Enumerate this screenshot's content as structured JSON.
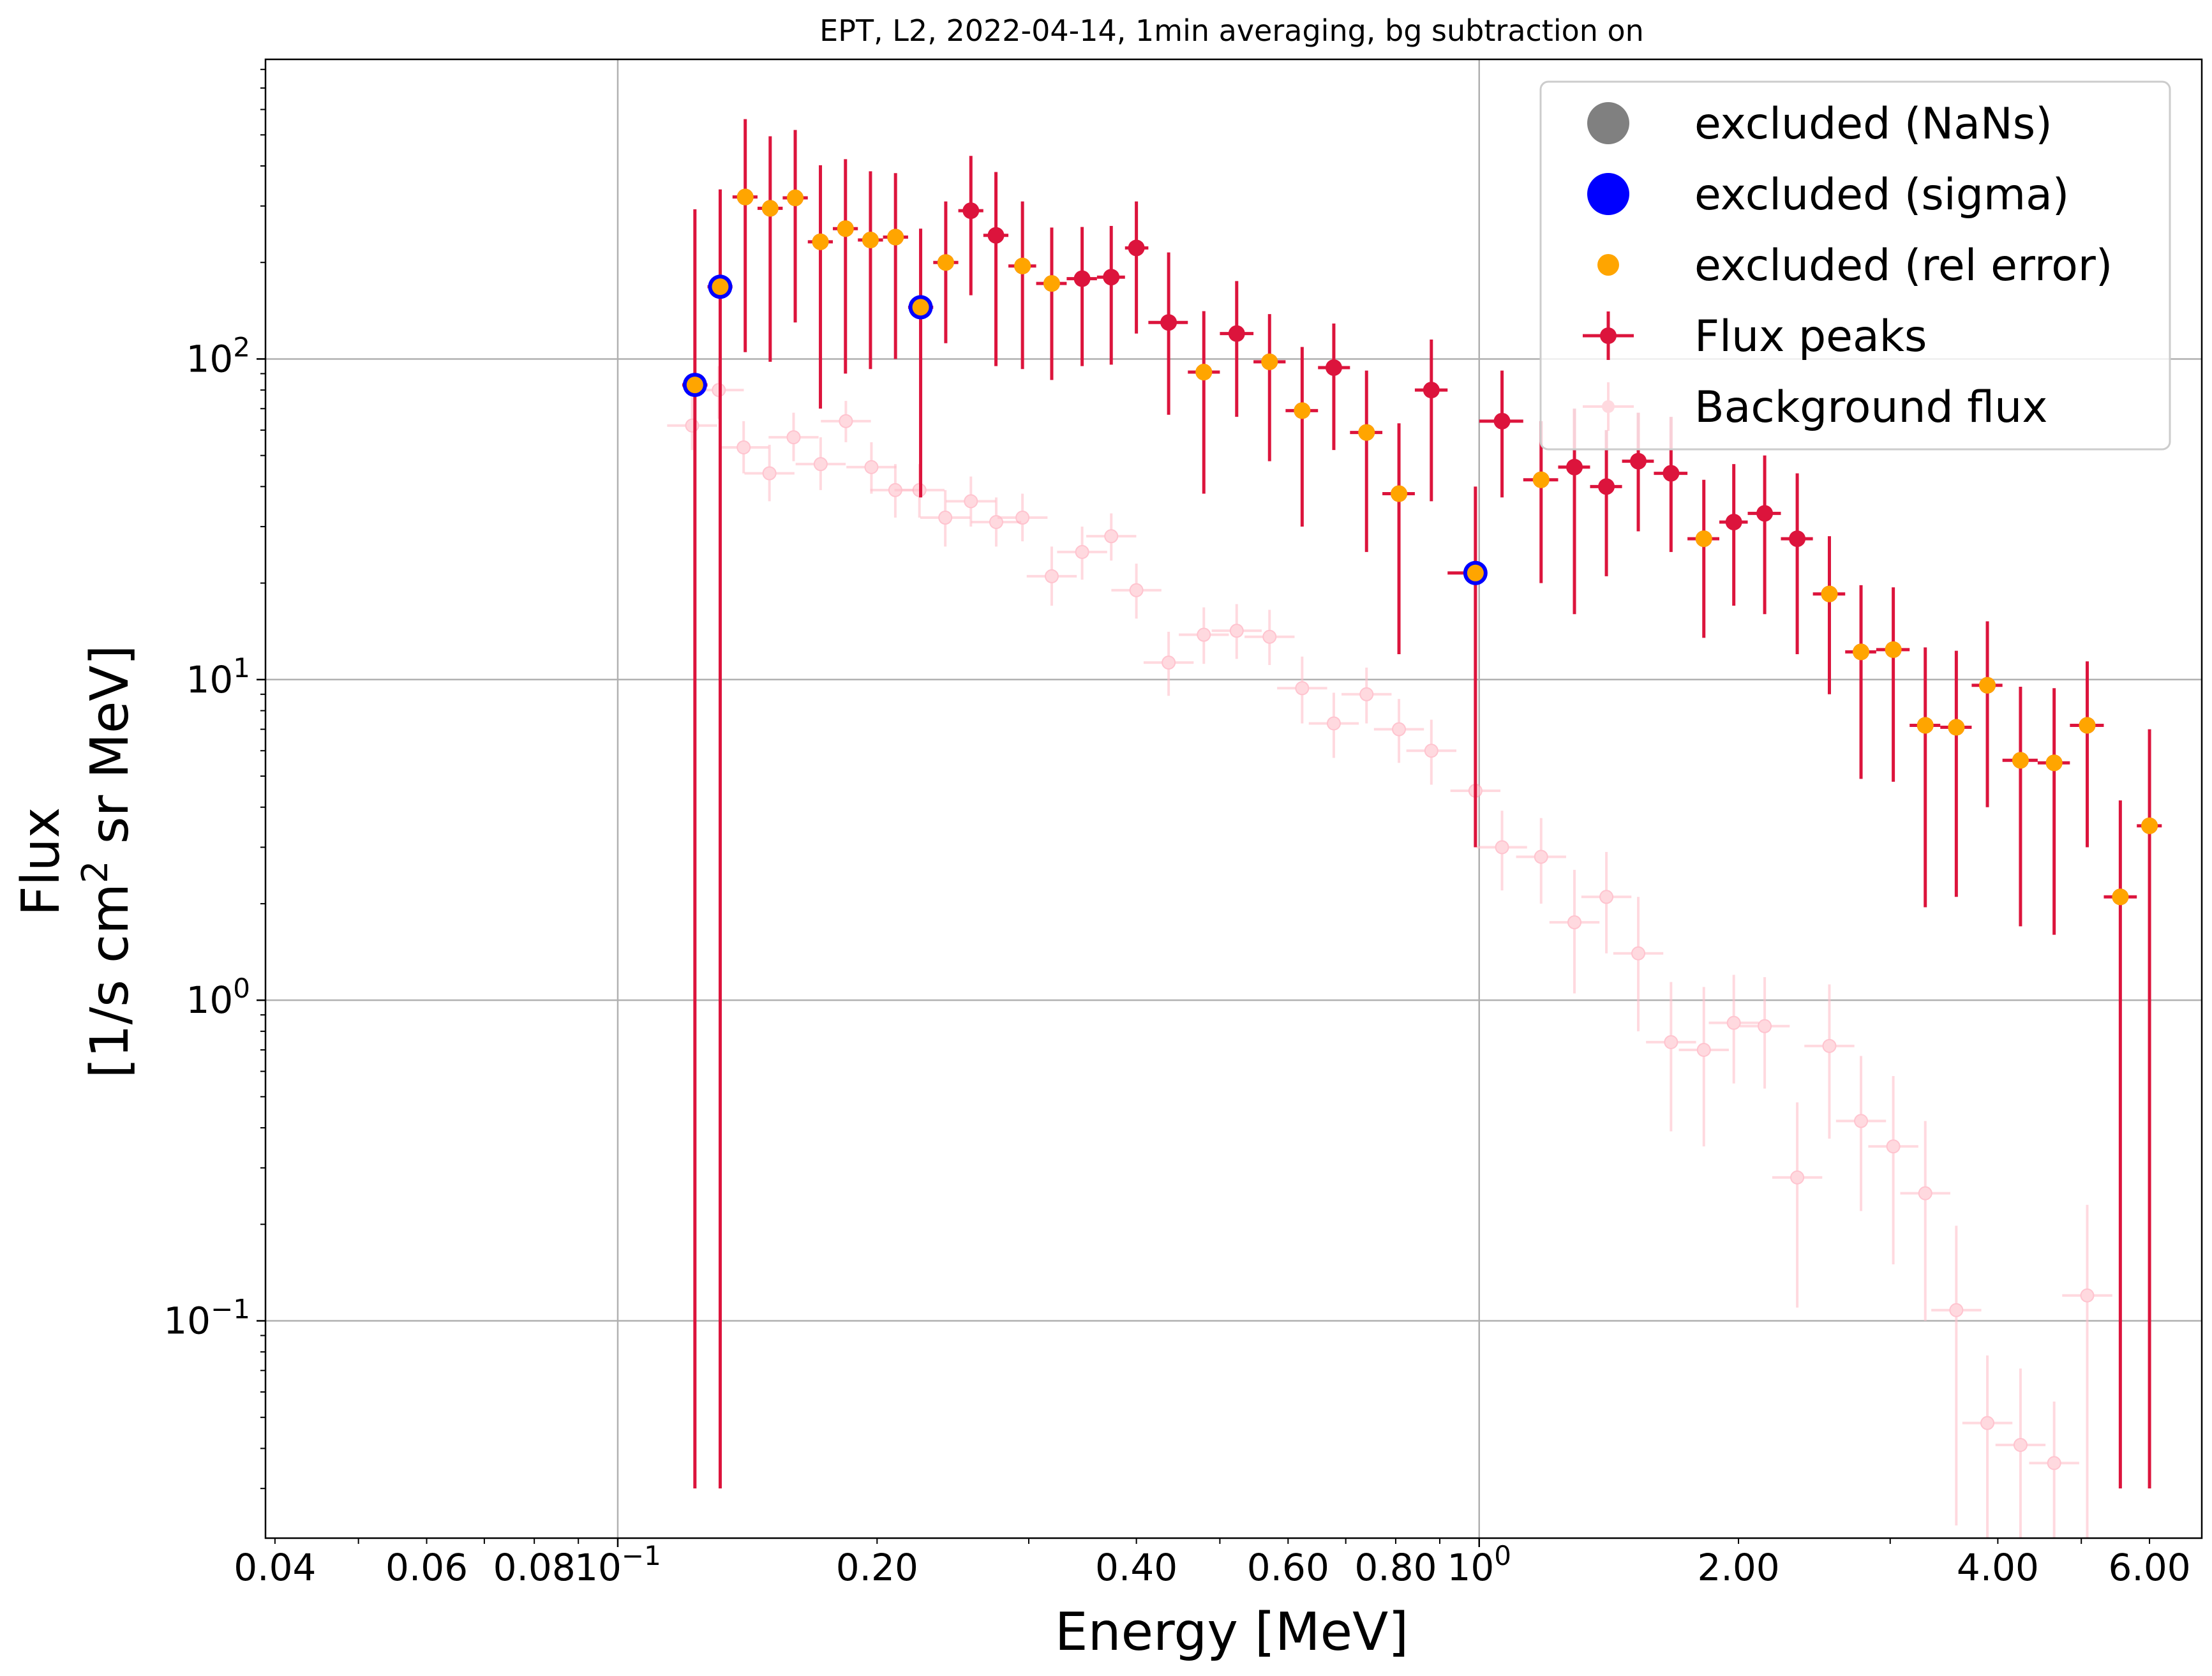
{
  "chart_data": {
    "type": "scatter",
    "title": "EPT, L2, 2022-04-14, 1min averaging, bg subtraction on",
    "xlabel": "Energy [MeV]",
    "ylabel_line1": "Flux",
    "ylabel_line2_pre": "[1/s cm",
    "ylabel_line2_sup": "2",
    "ylabel_line2_post": " sr MeV]",
    "xscale": "log",
    "yscale": "log",
    "xlim": [
      0.039,
      6.9
    ],
    "ylim": [
      0.021,
      860
    ],
    "grid": true,
    "legend_location": "upper right",
    "x_major_ticks": [
      {
        "value": 0.1,
        "label_base": "10",
        "label_exp": "−1"
      },
      {
        "value": 1.0,
        "label_base": "10",
        "label_exp": "0"
      }
    ],
    "x_minor_ticks": [
      {
        "value": 0.04,
        "label": "0.04"
      },
      {
        "value": 0.06,
        "label": "0.06"
      },
      {
        "value": 0.08,
        "label": "0.08"
      },
      {
        "value": 0.2,
        "label": "0.20"
      },
      {
        "value": 0.4,
        "label": "0.40"
      },
      {
        "value": 0.6,
        "label": "0.60"
      },
      {
        "value": 0.8,
        "label": "0.80"
      },
      {
        "value": 2.0,
        "label": "2.00"
      },
      {
        "value": 4.0,
        "label": "4.00"
      },
      {
        "value": 6.0,
        "label": "6.00"
      }
    ],
    "y_major_ticks": [
      {
        "value": 0.1,
        "label_base": "10",
        "label_exp": "−1"
      },
      {
        "value": 1,
        "label_base": "10",
        "label_exp": "0"
      },
      {
        "value": 10,
        "label_base": "10",
        "label_exp": "1"
      },
      {
        "value": 100,
        "label_base": "10",
        "label_exp": "2"
      }
    ],
    "legend": [
      {
        "label": "excluded (NaNs)",
        "marker": "gray-dot"
      },
      {
        "label": "excluded (sigma)",
        "marker": "blue-dot"
      },
      {
        "label": "excluded (rel error)",
        "marker": "orange-dot"
      },
      {
        "label": "Flux peaks",
        "marker": "crimson-errorbar"
      },
      {
        "label": "Background flux",
        "marker": "pink-errorbar"
      }
    ],
    "colors": {
      "flux": "#dc143c",
      "background": "#ffc0cb",
      "rel_error": "#ffa500",
      "sigma": "#0000ff",
      "nans": "#808080",
      "grid": "#b0b0b0"
    },
    "series": [
      {
        "name": "Flux peaks",
        "energy_bins": [
          [
            0.1188,
            0.1229,
            0.1271
          ],
          [
            0.1271,
            0.1315,
            0.1359
          ],
          [
            0.1359,
            0.1406,
            0.1453
          ],
          [
            0.1453,
            0.1503,
            0.1554
          ],
          [
            0.1554,
            0.1607,
            0.1662
          ],
          [
            0.1662,
            0.1719,
            0.1777
          ],
          [
            0.1777,
            0.1838,
            0.19
          ],
          [
            0.19,
            0.1965,
            0.2032
          ],
          [
            0.2032,
            0.2101,
            0.2173
          ],
          [
            0.2173,
            0.2247,
            0.2324
          ],
          [
            0.2324,
            0.2403,
            0.2485
          ],
          [
            0.2485,
            0.257,
            0.2657
          ],
          [
            0.2657,
            0.2748,
            0.2841
          ],
          [
            0.2841,
            0.295,
            0.306
          ],
          [
            0.306,
            0.319,
            0.332
          ],
          [
            0.332,
            0.346,
            0.36
          ],
          [
            0.36,
            0.374,
            0.388
          ],
          [
            0.388,
            0.4,
            0.413
          ],
          [
            0.413,
            0.436,
            0.459
          ],
          [
            0.459,
            0.479,
            0.5
          ],
          [
            0.5,
            0.523,
            0.547
          ],
          [
            0.547,
            0.571,
            0.596
          ],
          [
            0.596,
            0.623,
            0.65
          ],
          [
            0.65,
            0.678,
            0.708
          ],
          [
            0.708,
            0.74,
            0.772
          ],
          [
            0.772,
            0.807,
            0.842
          ],
          [
            0.842,
            0.88,
            0.919
          ],
          [
            0.919,
            0.99,
            1.0
          ],
          [
            1.0,
            1.063,
            1.125
          ],
          [
            1.125,
            1.18,
            1.235
          ],
          [
            1.235,
            1.29,
            1.345
          ],
          [
            1.345,
            1.405,
            1.465
          ],
          [
            1.465,
            1.53,
            1.595
          ],
          [
            1.595,
            1.67,
            1.745
          ],
          [
            1.745,
            1.823,
            1.9
          ],
          [
            1.9,
            1.975,
            2.05
          ],
          [
            2.05,
            2.145,
            2.24
          ],
          [
            2.24,
            2.34,
            2.44
          ],
          [
            2.44,
            2.55,
            2.66
          ],
          [
            2.66,
            2.775,
            2.89
          ],
          [
            2.89,
            3.025,
            3.16
          ],
          [
            3.16,
            3.295,
            3.43
          ],
          [
            3.43,
            3.58,
            3.73
          ],
          [
            3.73,
            3.89,
            4.05
          ],
          [
            4.05,
            4.25,
            4.45
          ],
          [
            4.45,
            4.65,
            4.85
          ],
          [
            4.85,
            5.08,
            5.31
          ],
          [
            5.31,
            5.55,
            5.8
          ],
          [
            5.8,
            6.0,
            6.2
          ]
        ],
        "flux": [
          83,
          168,
          320,
          295,
          318,
          232,
          255,
          235,
          240,
          145,
          200,
          290,
          243,
          195,
          172,
          178,
          180,
          222,
          130,
          91,
          120,
          98,
          69,
          94,
          59,
          38,
          80,
          21.5,
          64,
          42,
          46,
          40,
          48,
          44,
          27.5,
          31,
          33,
          27.5,
          18.5,
          12.2,
          12.4,
          7.2,
          7.1,
          9.6,
          5.6,
          5.5,
          7.2,
          2.1,
          3.5
        ],
        "err_low": [
          82.97,
          167.97,
          215,
          197,
          188,
          162,
          165,
          142,
          140,
          108,
          88,
          132,
          148,
          102,
          86,
          83,
          84,
          102,
          63,
          53,
          54,
          50,
          39,
          42,
          34,
          26,
          44,
          18.5,
          27,
          22,
          30,
          19,
          19,
          19,
          14,
          14,
          17,
          15.5,
          9.5,
          7.3,
          7.6,
          5.25,
          5.0,
          5.6,
          3.9,
          3.9,
          4.2,
          2.07,
          3.47
        ],
        "err_high": [
          210,
          170,
          240,
          200,
          200,
          170,
          165,
          150,
          140,
          110,
          110,
          140,
          140,
          115,
          85,
          80,
          80,
          88,
          85,
          50,
          55,
          40,
          40,
          35,
          33,
          25,
          35,
          18.5,
          28,
          22,
          24,
          20,
          20,
          22,
          14.5,
          16,
          17,
          16.5,
          9.5,
          7.5,
          7.0,
          5.4,
          5.2,
          5.6,
          3.9,
          3.9,
          4.2,
          2.1,
          3.5
        ],
        "excluded_rel_error": [
          true,
          true,
          true,
          true,
          true,
          true,
          true,
          true,
          true,
          true,
          true,
          false,
          false,
          true,
          true,
          false,
          false,
          false,
          false,
          true,
          false,
          true,
          true,
          false,
          true,
          true,
          false,
          true,
          false,
          true,
          false,
          false,
          false,
          false,
          true,
          false,
          false,
          false,
          true,
          true,
          true,
          true,
          true,
          true,
          true,
          true,
          true,
          true,
          true
        ],
        "excluded_sigma": [
          true,
          true,
          false,
          false,
          false,
          false,
          false,
          false,
          false,
          true,
          false,
          false,
          false,
          false,
          false,
          false,
          false,
          false,
          false,
          false,
          false,
          false,
          false,
          false,
          false,
          false,
          false,
          true,
          false,
          false,
          false,
          false,
          false,
          false,
          false,
          false,
          false,
          false,
          false,
          false,
          false,
          false,
          false,
          false,
          false,
          false,
          false,
          false,
          false
        ]
      },
      {
        "name": "Background flux",
        "energy": [
          0.122,
          0.131,
          0.14,
          0.15,
          0.16,
          0.172,
          0.184,
          0.197,
          0.21,
          0.224,
          0.24,
          0.257,
          0.275,
          0.295,
          0.319,
          0.346,
          0.374,
          0.4,
          0.436,
          0.479,
          0.523,
          0.571,
          0.623,
          0.678,
          0.74,
          0.807,
          0.88,
          0.99,
          1.063,
          1.18,
          1.29,
          1.405,
          1.53,
          1.67,
          1.823,
          1.975,
          2.145,
          2.34,
          2.55,
          2.775,
          3.025,
          3.295,
          3.58,
          3.89,
          4.25,
          4.65,
          5.08,
          5.55,
          6.0
        ],
        "flux": [
          62,
          80,
          53,
          44,
          57,
          47,
          64,
          46,
          39,
          39,
          32,
          36,
          31,
          32,
          21,
          25,
          28,
          19,
          11.3,
          13.8,
          14.2,
          13.6,
          9.4,
          7.3,
          9.0,
          7.0,
          6.0,
          4.5,
          3.0,
          2.8,
          1.75,
          2.1,
          1.4,
          0.74,
          0.7,
          0.85,
          0.83,
          0.28,
          0.72,
          0.42,
          0.35,
          0.25,
          0.108,
          0.048,
          0.041,
          0.036,
          0.12,
          null,
          null
        ],
        "err_low": [
          10,
          15,
          9,
          8,
          9,
          8,
          9,
          8,
          7,
          7,
          6,
          6,
          5,
          5,
          4,
          4.5,
          4.5,
          3.5,
          2.4,
          2.6,
          2.6,
          2.5,
          2.1,
          1.6,
          1.7,
          1.5,
          1.3,
          1.3,
          0.8,
          0.8,
          0.7,
          0.7,
          0.6,
          0.35,
          0.35,
          0.3,
          0.3,
          0.17,
          0.35,
          0.2,
          0.2,
          0.15,
          0.085,
          0.028,
          0.025,
          0.02,
          0.1,
          null,
          null
        ],
        "err_high": [
          14,
          15,
          11,
          10,
          11,
          10,
          10,
          9,
          8,
          8,
          7,
          7,
          6,
          6,
          5,
          5,
          5,
          4,
          2.8,
          3.0,
          3.0,
          2.9,
          2.4,
          1.8,
          1.9,
          1.7,
          1.5,
          1.5,
          0.9,
          0.9,
          0.8,
          0.8,
          0.7,
          0.4,
          0.4,
          0.35,
          0.35,
          0.2,
          0.4,
          0.25,
          0.23,
          0.17,
          0.09,
          0.03,
          0.03,
          0.02,
          0.11,
          null,
          null
        ]
      }
    ]
  }
}
